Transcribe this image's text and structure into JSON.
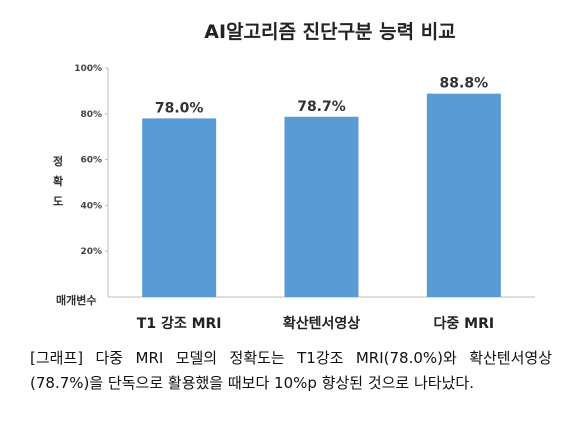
{
  "chart_data": {
    "type": "bar",
    "title": "AI알고리즘 진단구분 능력 비교",
    "xlabel": "매개변수",
    "ylabel": "정확도",
    "categories": [
      "T1 강조 MRI",
      "확산텐서영상",
      "다중 MRI"
    ],
    "values": [
      78.0,
      78.7,
      88.8
    ],
    "data_labels": [
      "78.0%",
      "78.7%",
      "88.8%"
    ],
    "ylim": [
      0,
      100
    ],
    "yticks": [
      {
        "value": 20,
        "label": "20%"
      },
      {
        "value": 40,
        "label": "40%"
      },
      {
        "value": 60,
        "label": "60%"
      },
      {
        "value": 80,
        "label": "80%"
      },
      {
        "value": 100,
        "label": "100%"
      }
    ],
    "grid": false,
    "bar_color": "#5b9bd5"
  },
  "caption": "[그래프] 다중 MRI 모델의 정확도는 T1강조 MRI(78.0%)와 확산텐서영상(78.7%)을 단독으로 활용했을 때보다 10%p 향상된 것으로 나타났다."
}
